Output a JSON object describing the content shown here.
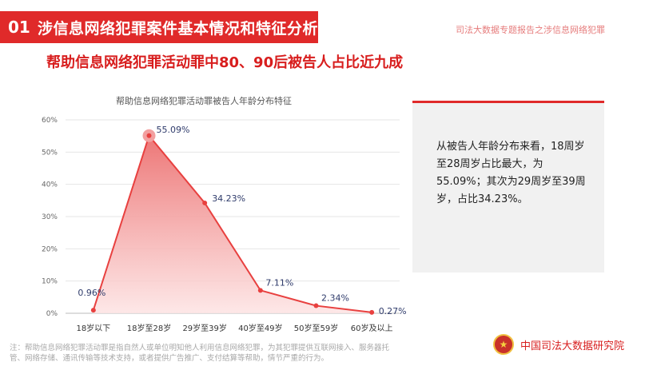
{
  "header": {
    "number": "01",
    "title": "涉信息网络犯罪案件基本情况和特征分析",
    "report_name": "司法大数据专题报告之涉信息网络犯罪"
  },
  "subtitle": "帮助信息网络犯罪活动罪中80、90后被告人占比近九成",
  "chart_data": {
    "type": "area",
    "title": "帮助信息网络犯罪活动罪被告人年龄分布特征",
    "categories": [
      "18岁以下",
      "18岁至28岁",
      "29岁至39岁",
      "40岁至49岁",
      "50岁至59岁",
      "60岁及以上"
    ],
    "values": [
      0.96,
      55.09,
      34.23,
      7.11,
      2.34,
      0.27
    ],
    "value_labels": [
      "0.96%",
      "55.09%",
      "34.23%",
      "7.11%",
      "2.34%",
      "0.27%"
    ],
    "y_ticks": [
      "0%",
      "10%",
      "20%",
      "30%",
      "40%",
      "50%",
      "60%"
    ],
    "ylim": [
      0,
      60
    ],
    "xlabel": "",
    "ylabel": "",
    "grid": true,
    "line_color": "#e8403f",
    "fill_color": "#f2a0a0",
    "highlight_index": 1
  },
  "info": {
    "text": "从被告人年龄分布来看，18周岁至28周岁占比最大，为55.09%；其次为29周岁至39周岁，占比34.23%。",
    "rule_color": "#e02a2a"
  },
  "footnote": "注：帮助信息网络犯罪活动罪是指自然人或单位明知他人利用信息网络犯罪，为其犯罪提供互联网接入、服务器托管、网络存储、通讯传输等技术支持，或者提供广告推广、支付结算等帮助，情节严重的行为。",
  "organization": {
    "name": "中国司法大数据研究院",
    "emblem_icon": "national-emblem-icon"
  }
}
